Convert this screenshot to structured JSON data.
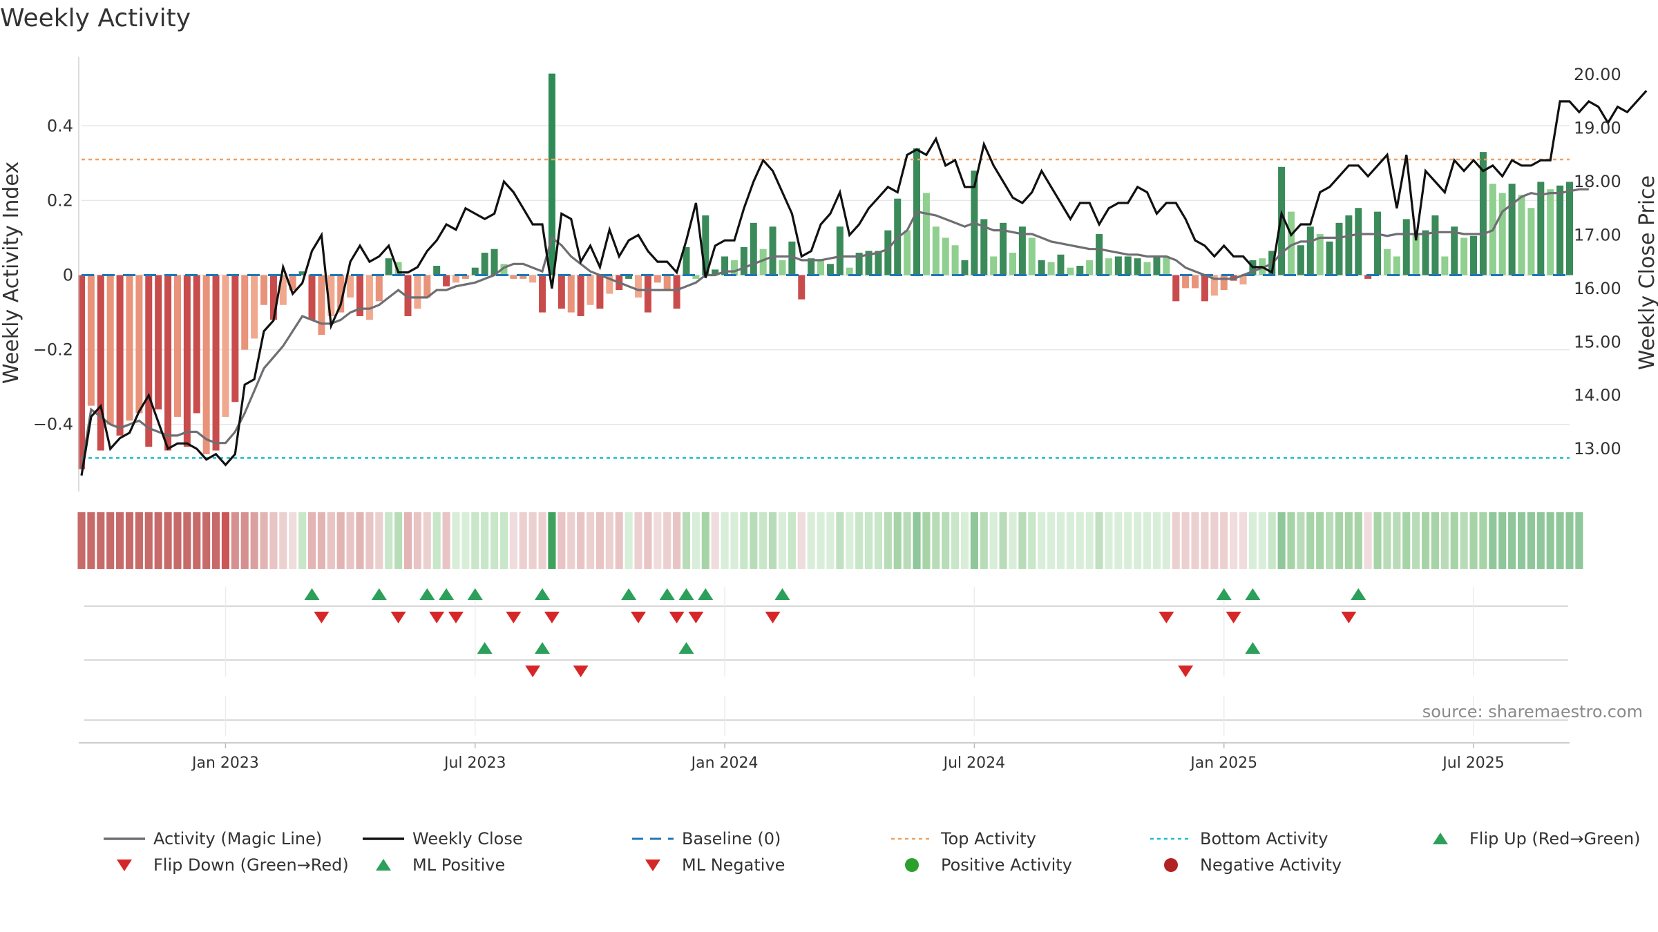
{
  "chart_data": {
    "type": "bar",
    "title": "Weekly Activity",
    "ylabel": "Weekly Activity Index",
    "y2label": "Weekly Close Price",
    "source": "source: sharemaestro.com",
    "ylim": [
      -0.58,
      0.58
    ],
    "y2lim": [
      12.2,
      20.3
    ],
    "y_ticks": [
      -0.4,
      -0.2,
      0,
      0.2,
      0.4
    ],
    "y_tick_labels": [
      "−0.4",
      "−0.2",
      "0",
      "0.2",
      "0.4"
    ],
    "y2_ticks": [
      13,
      14,
      15,
      16,
      17,
      18,
      19,
      20
    ],
    "y2_tick_labels": [
      "13.00",
      "14.00",
      "15.00",
      "16.00",
      "17.00",
      "18.00",
      "19.00",
      "20.00"
    ],
    "x_ticks": [
      {
        "week": 15,
        "label": "Jan 2023"
      },
      {
        "week": 41,
        "label": "Jul 2023"
      },
      {
        "week": 67,
        "label": "Jan 2024"
      },
      {
        "week": 93,
        "label": "Jul 2024"
      },
      {
        "week": 119,
        "label": "Jan 2025"
      },
      {
        "week": 145,
        "label": "Jul 2025"
      }
    ],
    "top_activity": 0.31,
    "bottom_activity": -0.49,
    "activity": [
      -0.52,
      -0.35,
      -0.47,
      -0.4,
      -0.43,
      -0.39,
      -0.37,
      -0.46,
      -0.36,
      -0.47,
      -0.38,
      -0.46,
      -0.37,
      -0.48,
      -0.47,
      -0.38,
      -0.34,
      -0.2,
      -0.17,
      -0.08,
      -0.12,
      -0.08,
      -0.04,
      0.01,
      -0.12,
      -0.16,
      -0.11,
      -0.1,
      -0.06,
      -0.11,
      -0.12,
      -0.07,
      0.045,
      0.035,
      -0.11,
      -0.09,
      -0.06,
      0.025,
      -0.03,
      -0.02,
      -0.01,
      0.02,
      0.06,
      0.07,
      0.03,
      -0.01,
      -0.01,
      -0.02,
      -0.1,
      0.54,
      -0.09,
      -0.1,
      -0.11,
      -0.08,
      -0.09,
      -0.05,
      -0.04,
      -0.01,
      -0.06,
      -0.1,
      -0.02,
      -0.04,
      -0.09,
      0.075,
      -0.01,
      0.16,
      0.015,
      0.05,
      0.04,
      0.075,
      0.14,
      0.07,
      0.13,
      0.04,
      0.09,
      -0.065,
      0.045,
      0.04,
      0.03,
      0.13,
      0.02,
      0.06,
      0.065,
      0.065,
      0.12,
      0.205,
      0.12,
      0.34,
      0.22,
      0.13,
      0.1,
      0.08,
      0.04,
      0.28,
      0.15,
      0.05,
      0.14,
      0.06,
      0.13,
      0.1,
      0.04,
      0.035,
      0.055,
      0.02,
      0.025,
      0.04,
      0.11,
      0.045,
      0.05,
      0.05,
      0.045,
      0.035,
      0.05,
      0.05,
      -0.07,
      -0.035,
      -0.035,
      -0.07,
      -0.055,
      -0.04,
      -0.015,
      -0.025,
      0.04,
      0.045,
      0.065,
      0.29,
      0.17,
      0.08,
      0.13,
      0.11,
      0.09,
      0.14,
      0.16,
      0.18,
      -0.01,
      0.17,
      0.07,
      0.05,
      0.15,
      0.11,
      0.12,
      0.16,
      0.05,
      0.13,
      0.1,
      0.105,
      0.33,
      0.245,
      0.22,
      0.245,
      0.215,
      0.18,
      0.25,
      0.23,
      0.24,
      0.25
    ],
    "activity_colors": [
      "#c94c4c",
      "#e8937a",
      "#c94c4c",
      "#e8937a",
      "#c94c4c",
      "#e8937a",
      "#e8937a",
      "#c94c4c",
      "#c94c4c",
      "#c94c4c",
      "#e8937a",
      "#c94c4c",
      "#c94c4c",
      "#e8937a",
      "#c94c4c",
      "#f0a88e",
      "#c94c4c",
      "#e8937a",
      "#f0a88e",
      "#e8937a",
      "#c94c4c",
      "#f0a88e",
      "#e8937a",
      "#3b8a5a",
      "#c94c4c",
      "#e8937a",
      "#f0a88e",
      "#e8937a",
      "#f0a88e",
      "#c94c4c",
      "#f0a88e",
      "#e8937a",
      "#3b8a5a",
      "#8fcf8f",
      "#c94c4c",
      "#f0a88e",
      "#e8937a",
      "#3b8a5a",
      "#c94c4c",
      "#f0a88e",
      "#e8937a",
      "#3b8a5a",
      "#3b8a5a",
      "#3b8a5a",
      "#8fcf8f",
      "#e8937a",
      "#e8937a",
      "#f0a88e",
      "#c94c4c",
      "#2e8b57",
      "#c94c4c",
      "#e8937a",
      "#c94c4c",
      "#f0a88e",
      "#c94c4c",
      "#f0a88e",
      "#c94c4c",
      "#3b8a5a",
      "#f0a88e",
      "#c94c4c",
      "#e8937a",
      "#e8937a",
      "#c94c4c",
      "#3b8a5a",
      "#8fcf8f",
      "#3b8a5a",
      "#3b8a5a",
      "#3b8a5a",
      "#8fcf8f",
      "#3b8a5a",
      "#3b8a5a",
      "#8fcf8f",
      "#3b8a5a",
      "#8fcf8f",
      "#3b8a5a",
      "#c94c4c",
      "#3b8a5a",
      "#8fcf8f",
      "#3b8a5a",
      "#3b8a5a",
      "#8fcf8f",
      "#3b8a5a",
      "#3b8a5a",
      "#3b8a5a",
      "#3b8a5a",
      "#3b8a5a",
      "#8fcf8f",
      "#3b8a5a",
      "#8fcf8f",
      "#8fcf8f",
      "#8fcf8f",
      "#8fcf8f",
      "#3b8a5a",
      "#3b8a5a",
      "#3b8a5a",
      "#8fcf8f",
      "#3b8a5a",
      "#8fcf8f",
      "#3b8a5a",
      "#8fcf8f",
      "#3b8a5a",
      "#8fcf8f",
      "#3b8a5a",
      "#8fcf8f",
      "#3b8a5a",
      "#8fcf8f",
      "#3b8a5a",
      "#8fcf8f",
      "#3b8a5a",
      "#3b8a5a",
      "#3b8a5a",
      "#8fcf8f",
      "#3b8a5a",
      "#8fcf8f",
      "#c94c4c",
      "#e8937a",
      "#e8937a",
      "#c94c4c",
      "#f0a88e",
      "#e8937a",
      "#c94c4c",
      "#f0a88e",
      "#3b8a5a",
      "#8fcf8f",
      "#3b8a5a",
      "#3b8a5a",
      "#8fcf8f",
      "#3b8a5a",
      "#3b8a5a",
      "#8fcf8f",
      "#3b8a5a",
      "#3b8a5a",
      "#3b8a5a",
      "#3b8a5a",
      "#c94c4c",
      "#3b8a5a",
      "#8fcf8f",
      "#8fcf8f",
      "#3b8a5a",
      "#8fcf8f",
      "#3b8a5a",
      "#3b8a5a",
      "#8fcf8f",
      "#3b8a5a",
      "#8fcf8f",
      "#3b8a5a",
      "#3b8a5a",
      "#8fcf8f",
      "#8fcf8f",
      "#3b8a5a",
      "#8fcf8f",
      "#8fcf8f",
      "#3b8a5a",
      "#8fcf8f",
      "#3b8a5a",
      "#3b8a5a"
    ],
    "magic_line": [
      -0.52,
      -0.36,
      -0.38,
      -0.4,
      -0.41,
      -0.4,
      -0.39,
      -0.41,
      -0.42,
      -0.43,
      -0.43,
      -0.42,
      -0.42,
      -0.44,
      -0.45,
      -0.45,
      -0.42,
      -0.37,
      -0.31,
      -0.25,
      -0.22,
      -0.19,
      -0.15,
      -0.11,
      -0.12,
      -0.13,
      -0.13,
      -0.12,
      -0.1,
      -0.09,
      -0.09,
      -0.08,
      -0.06,
      -0.04,
      -0.06,
      -0.06,
      -0.06,
      -0.04,
      -0.04,
      -0.03,
      -0.025,
      -0.02,
      -0.01,
      0.0,
      0.02,
      0.03,
      0.03,
      0.02,
      0.01,
      0.1,
      0.08,
      0.05,
      0.03,
      0.01,
      0.0,
      -0.01,
      -0.02,
      -0.03,
      -0.04,
      -0.04,
      -0.04,
      -0.04,
      -0.04,
      -0.03,
      -0.02,
      0.0,
      0.0,
      0.01,
      0.01,
      0.02,
      0.03,
      0.04,
      0.05,
      0.05,
      0.05,
      0.04,
      0.04,
      0.04,
      0.045,
      0.05,
      0.05,
      0.05,
      0.055,
      0.06,
      0.07,
      0.1,
      0.12,
      0.17,
      0.165,
      0.16,
      0.15,
      0.14,
      0.13,
      0.14,
      0.13,
      0.12,
      0.12,
      0.115,
      0.11,
      0.11,
      0.1,
      0.09,
      0.085,
      0.08,
      0.075,
      0.07,
      0.07,
      0.065,
      0.06,
      0.055,
      0.055,
      0.05,
      0.05,
      0.05,
      0.04,
      0.02,
      0.01,
      0.0,
      -0.01,
      -0.01,
      -0.01,
      0.0,
      0.01,
      0.02,
      0.03,
      0.06,
      0.08,
      0.09,
      0.09,
      0.1,
      0.1,
      0.1,
      0.105,
      0.11,
      0.11,
      0.11,
      0.105,
      0.11,
      0.11,
      0.11,
      0.11,
      0.115,
      0.115,
      0.115,
      0.11,
      0.11,
      0.11,
      0.12,
      0.17,
      0.19,
      0.21,
      0.22,
      0.215,
      0.22,
      0.22,
      0.225,
      0.23,
      0.23
    ],
    "weekly_close": [
      12.5,
      13.6,
      13.8,
      13.0,
      13.2,
      13.3,
      13.7,
      14.0,
      13.5,
      13.0,
      13.1,
      13.1,
      13.0,
      12.8,
      12.9,
      12.7,
      12.9,
      14.2,
      14.3,
      15.2,
      15.4,
      16.4,
      15.9,
      16.1,
      16.7,
      17.0,
      15.3,
      15.7,
      16.5,
      16.8,
      16.5,
      16.6,
      16.8,
      16.3,
      16.3,
      16.4,
      16.7,
      16.9,
      17.2,
      17.1,
      17.5,
      17.4,
      17.3,
      17.4,
      18.0,
      17.8,
      17.5,
      17.2,
      17.2,
      16.0,
      17.4,
      17.3,
      16.5,
      16.8,
      16.4,
      17.1,
      16.6,
      16.9,
      17.0,
      16.7,
      16.5,
      16.5,
      16.3,
      16.9,
      17.6,
      16.2,
      16.8,
      16.9,
      16.9,
      17.5,
      18.0,
      18.4,
      18.2,
      17.8,
      17.4,
      16.6,
      16.7,
      17.2,
      17.4,
      17.8,
      17.0,
      17.2,
      17.5,
      17.7,
      17.9,
      17.8,
      18.5,
      18.6,
      18.5,
      18.8,
      18.3,
      18.4,
      17.9,
      17.9,
      18.7,
      18.3,
      18.0,
      17.7,
      17.6,
      17.8,
      18.2,
      17.9,
      17.6,
      17.3,
      17.6,
      17.6,
      17.2,
      17.5,
      17.6,
      17.6,
      17.9,
      17.8,
      17.4,
      17.6,
      17.6,
      17.3,
      16.9,
      16.8,
      16.6,
      16.8,
      16.6,
      16.6,
      16.4,
      16.4,
      16.3,
      17.4,
      17.0,
      17.2,
      17.2,
      17.8,
      17.9,
      18.1,
      18.3,
      18.3,
      18.1,
      18.3,
      18.5,
      17.5,
      18.5,
      16.9,
      18.2,
      18.0,
      17.8,
      18.4,
      18.2,
      18.4,
      18.2,
      18.3,
      18.1,
      18.4,
      18.3,
      18.3,
      18.4,
      18.4,
      19.5,
      19.5,
      19.3,
      19.5,
      19.4,
      19.1,
      19.4,
      19.3,
      19.5,
      19.7
    ],
    "strip_colors": [
      "#c76a6a",
      "#c76a6a",
      "#c76a6a",
      "#c76a6a",
      "#c76a6a",
      "#c76a6a",
      "#c76a6a",
      "#c76a6a",
      "#c76a6a",
      "#c76a6a",
      "#c76a6a",
      "#c76a6a",
      "#c76a6a",
      "#c76a6a",
      "#c76a6a",
      "#cc5555",
      "#d69090",
      "#d69090",
      "#dba0a0",
      "#e2b4b4",
      "#e8c4c4",
      "#ecd0d0",
      "#f0dcdc",
      "#c8e6c8",
      "#e2b4b4",
      "#e2b4b4",
      "#e8c4c4",
      "#e2b4b4",
      "#e8c4c4",
      "#e2b4b4",
      "#e8c4c4",
      "#ecd0d0",
      "#c8e6c8",
      "#b8dcb8",
      "#e2b4b4",
      "#e8c4c4",
      "#ecd0d0",
      "#c8e6c8",
      "#e8c4c4",
      "#d8eed8",
      "#d8eed8",
      "#c8e6c8",
      "#c8e6c8",
      "#c8e6c8",
      "#c8e6c8",
      "#f0dcdc",
      "#ecd0d0",
      "#ecd0d0",
      "#ecd0d0",
      "#3fa25c",
      "#e8c4c4",
      "#ecd0d0",
      "#e8c4c4",
      "#ecd0d0",
      "#e8c4c4",
      "#ecd0d0",
      "#e8c4c4",
      "#d8eed8",
      "#ecd0d0",
      "#e8c4c4",
      "#f0dcdc",
      "#ecd0d0",
      "#e8c4c4",
      "#b8dcb8",
      "#d8eed8",
      "#a6d4a6",
      "#f0dcdc",
      "#d8eed8",
      "#d8eed8",
      "#c8e6c8",
      "#b8dcb8",
      "#c8e6c8",
      "#b8dcb8",
      "#d8eed8",
      "#c8e6c8",
      "#f0dcdc",
      "#d8eed8",
      "#d8eed8",
      "#d8eed8",
      "#c0e0c0",
      "#d8eed8",
      "#c8e6c8",
      "#c8e6c8",
      "#c8e6c8",
      "#b8dcb8",
      "#a6d4a6",
      "#b8dcb8",
      "#8fc79a",
      "#a6d4a6",
      "#b8dcb8",
      "#b8dcb8",
      "#c8e6c8",
      "#d8eed8",
      "#8fc79a",
      "#b8dcb8",
      "#d8eed8",
      "#b8dcb8",
      "#d8eed8",
      "#b8dcb8",
      "#c8e6c8",
      "#d8eed8",
      "#d8eed8",
      "#d8eed8",
      "#d8eed8",
      "#d8eed8",
      "#d8eed8",
      "#c0e0c0",
      "#d8eed8",
      "#d8eed8",
      "#d8eed8",
      "#d8eed8",
      "#d8eed8",
      "#d8eed8",
      "#d8eed8",
      "#ecd0d0",
      "#ecd0d0",
      "#ecd0d0",
      "#ecd0d0",
      "#ecd0d0",
      "#ecd0d0",
      "#f0dcdc",
      "#f0dcdc",
      "#d8eed8",
      "#d8eed8",
      "#c8e6c8",
      "#8fc79a",
      "#a6d4a6",
      "#b8dcb8",
      "#a6d4a6",
      "#a6d4a6",
      "#b8dcb8",
      "#a6d4a6",
      "#a6d4a6",
      "#a6d4a6",
      "#f0dcdc",
      "#a6d4a6",
      "#b8dcb8",
      "#b8dcb8",
      "#a6d4a6",
      "#b8dcb8",
      "#a6d4a6",
      "#a6d4a6",
      "#b8dcb8",
      "#a6d4a6",
      "#b8dcb8",
      "#a6d4a6",
      "#a6d4a6",
      "#8fc79a",
      "#8fc79a",
      "#8fc79a",
      "#8fc79a",
      "#8fc79a",
      "#8fc79a",
      "#8fc79a",
      "#8fc79a",
      "#8fc79a",
      "#8fc79a"
    ],
    "flip_up_weeks": [
      24,
      31,
      36,
      38,
      41,
      48,
      57,
      61,
      63,
      65,
      73,
      119,
      122,
      133
    ],
    "flip_down_weeks": [
      25,
      33,
      37,
      39,
      45,
      49,
      58,
      62,
      64,
      72,
      113,
      120,
      132
    ],
    "ml_positive_weeks": [
      42,
      48,
      63,
      122
    ],
    "ml_negative_weeks": [
      47,
      52,
      115
    ],
    "legend": [
      {
        "key": "magic",
        "label": "Activity (Magic Line)"
      },
      {
        "key": "close",
        "label": "Weekly Close"
      },
      {
        "key": "baseline",
        "label": "Baseline (0)"
      },
      {
        "key": "top",
        "label": "Top Activity"
      },
      {
        "key": "bottom",
        "label": "Bottom Activity"
      },
      {
        "key": "flipup",
        "label": "Flip Up (Red→Green)"
      },
      {
        "key": "flipdown",
        "label": "Flip Down (Green→Red)"
      },
      {
        "key": "mlpos",
        "label": "ML Positive"
      },
      {
        "key": "mlneg",
        "label": "ML Negative"
      },
      {
        "key": "posact",
        "label": "Positive Activity"
      },
      {
        "key": "negact",
        "label": "Negative Activity"
      }
    ],
    "colors": {
      "magic_line": "#6e6e73",
      "weekly_close": "#111111",
      "baseline": "#1f77b4",
      "top_activity": "#f0a060",
      "bottom_activity": "#17becf",
      "up_marker": "#2ca05a",
      "down_marker": "#d62728",
      "positive": "#2ca02c",
      "negative": "#b22222",
      "grid": "#e6e6e6",
      "axis_text": "#333333",
      "source_text": "#8a8a8a"
    }
  }
}
